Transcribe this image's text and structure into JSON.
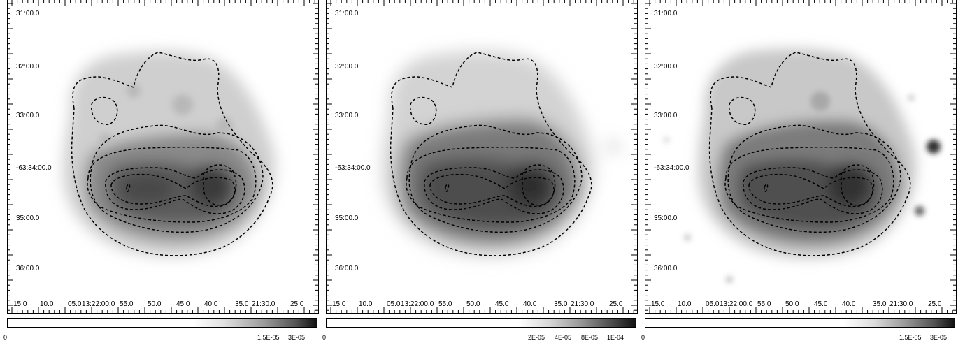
{
  "panels": [
    {
      "dec_labels": [
        "31:00.0",
        "32:00.0",
        "33:00.0",
        "-63:34:00.0",
        "35:00.0",
        "36:00.0"
      ],
      "ra_labels": [
        "15.0",
        "10.0",
        "05.0",
        "13:22:00.0",
        "55.0",
        "50.0",
        "45.0",
        "40.0",
        "35.0",
        "21:30.0",
        "25.0"
      ],
      "colorbar_ticks": [
        "0",
        "1.5E-05",
        "3E-05"
      ]
    },
    {
      "dec_labels": [
        "31:00.0",
        "32:00.0",
        "33:00.0",
        "-63:34:00.0",
        "35:00.0",
        "36:00.0"
      ],
      "ra_labels": [
        "15.0",
        "10.0",
        "05.0",
        "13:22:00.0",
        "55.0",
        "50.0",
        "45.0",
        "40.0",
        "35.0",
        "21:30.0",
        "25.0"
      ],
      "colorbar_ticks": [
        "0",
        "2E-05",
        "4E-05",
        "8E-05",
        "1E-04"
      ]
    },
    {
      "dec_labels": [
        "31:00.0",
        "32:00.0",
        "33:00.0",
        "-63:34:00.0",
        "35:00.0",
        "36:00.0"
      ],
      "ra_labels": [
        "15.0",
        "10.0",
        "05.0",
        "13:22:00.0",
        "55.0",
        "50.0",
        "45.0",
        "40.0",
        "35.0",
        "21:30.0",
        "25.0"
      ],
      "colorbar_ticks": [
        "0",
        "1.5E-05",
        "3E-05"
      ]
    }
  ],
  "colors": {
    "colormap_low": "#ffffff",
    "colormap_high": "#1a1a1a",
    "contour": "#000000"
  }
}
